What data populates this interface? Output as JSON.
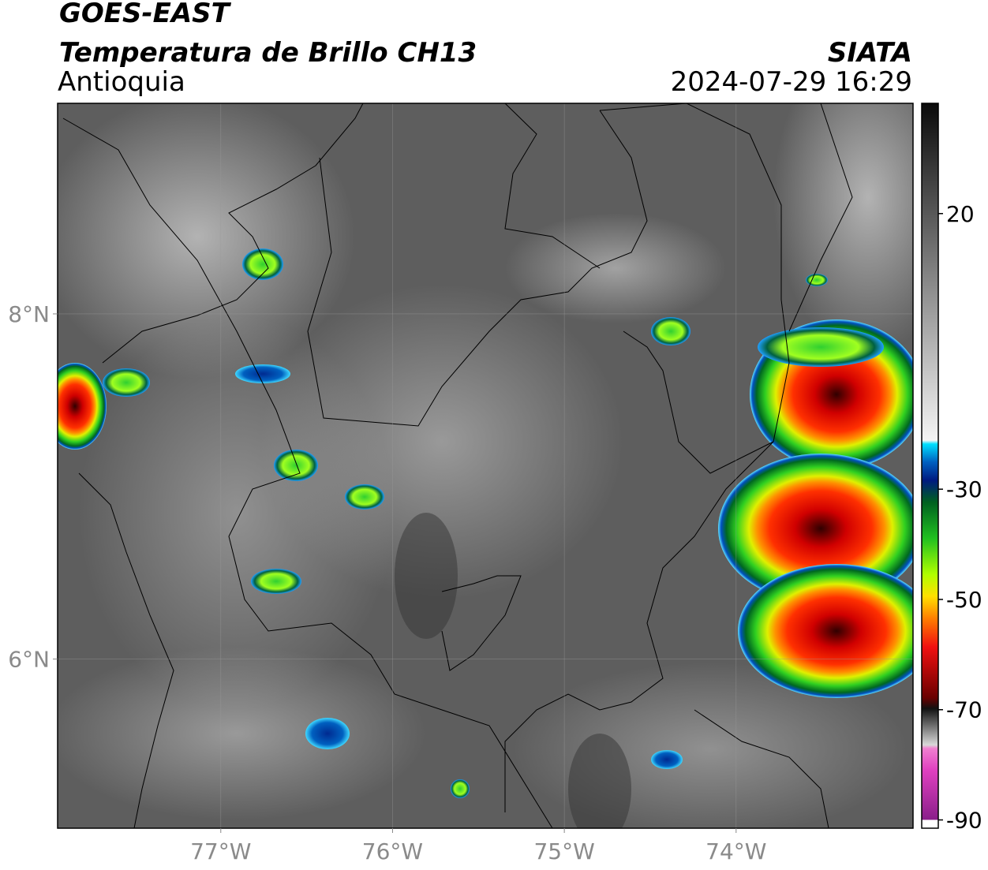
{
  "header": {
    "title": "GOES-EAST",
    "subtitle": "Temperatura de Brillo CH13",
    "region": "Antioquia",
    "source": "SIATA",
    "datetime": "2024-07-29 16:29"
  },
  "map": {
    "xlim": [
      -77.95,
      -72.97
    ],
    "ylim": [
      5.02,
      9.22
    ],
    "xticks": [
      {
        "value": -77,
        "label": "77°W"
      },
      {
        "value": -76,
        "label": "76°W"
      },
      {
        "value": -75,
        "label": "75°W"
      },
      {
        "value": -74,
        "label": "74°W"
      }
    ],
    "yticks": [
      {
        "value": 8,
        "label": "8°N"
      },
      {
        "value": 6,
        "label": "6°N"
      }
    ],
    "grid": true
  },
  "colorbar": {
    "lim": [
      -91.5,
      40
    ],
    "ticks": [
      20,
      -30,
      -50,
      -70,
      -90
    ]
  }
}
